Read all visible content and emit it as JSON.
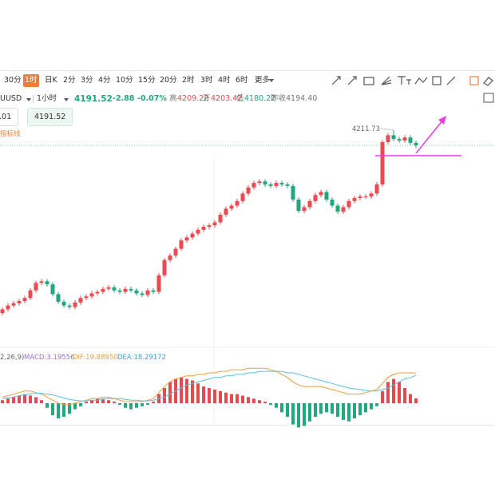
{
  "toolbar": {
    "periods": [
      "30分",
      "1时",
      "日K",
      "2分",
      "3分",
      "4分",
      "10分",
      "15分",
      "20分",
      "2时",
      "3时",
      "4时",
      "6时",
      "更多"
    ],
    "active": 1
  },
  "quote": {
    "symbol": "UUSD",
    "interval": "1小时",
    "price": "4191.52",
    "change": "-2.88",
    "change_pct": "-0.07%",
    "high_label": "高",
    "high": "4209.22",
    "open_label": "开",
    "open": "4203.42",
    "low_label": "低",
    "low": "4180.22",
    "prev_label": "昨收",
    "prev": "4194.40",
    "size_box": ".01",
    "price_box": "4191.52",
    "line_tool": "指标线"
  },
  "chart_data": [
    {
      "type": "candlestick",
      "up_color": "#eb4b50",
      "down_color": "#22a77a",
      "high_annotation": "4211.73",
      "last_price": 4191.52,
      "open": [
        3970,
        3975,
        3980,
        3983,
        3986,
        3990,
        4000,
        4010,
        4012,
        4008,
        3995,
        3985,
        3980,
        3978,
        3984,
        3990,
        3992,
        3996,
        3998,
        4002,
        4004,
        4000,
        3998,
        4002,
        4000,
        3996,
        3994,
        4000,
        3998,
        4020,
        4040,
        4046,
        4055,
        4066,
        4070,
        4075,
        4080,
        4084,
        4086,
        4090,
        4100,
        4108,
        4112,
        4118,
        4128,
        4136,
        4142,
        4144,
        4140,
        4138,
        4142,
        4140,
        4138,
        4120,
        4105,
        4110,
        4118,
        4126,
        4130,
        4120,
        4112,
        4104,
        4110,
        4118,
        4122,
        4124,
        4124,
        4128,
        4140,
        4196,
        4205,
        4200,
        4198,
        4202,
        4195
      ],
      "high": [
        3978,
        3983,
        3986,
        3989,
        3993,
        4003,
        4013,
        4015,
        4015,
        4011,
        3998,
        3988,
        3983,
        3987,
        3993,
        3995,
        3999,
        4001,
        4005,
        4007,
        4007,
        4003,
        4005,
        4005,
        4003,
        3999,
        4003,
        4003,
        4023,
        4043,
        4049,
        4058,
        4069,
        4073,
        4078,
        4083,
        4087,
        4089,
        4093,
        4103,
        4111,
        4115,
        4121,
        4131,
        4139,
        4145,
        4147,
        4147,
        4143,
        4145,
        4145,
        4143,
        4141,
        4123,
        4113,
        4121,
        4129,
        4133,
        4133,
        4123,
        4115,
        4113,
        4121,
        4125,
        4127,
        4127,
        4131,
        4143,
        4199,
        4208,
        4211.73,
        4203,
        4205,
        4205,
        4198
      ],
      "low": [
        3967,
        3972,
        3977,
        3980,
        3983,
        3987,
        3997,
        4007,
        4005,
        3992,
        3982,
        3977,
        3975,
        3975,
        3981,
        3987,
        3989,
        3993,
        3995,
        3999,
        3997,
        3995,
        3995,
        3997,
        3993,
        3991,
        3991,
        3995,
        3995,
        4017,
        4037,
        4043,
        4052,
        4063,
        4067,
        4072,
        4077,
        4081,
        4083,
        4087,
        4097,
        4105,
        4109,
        4115,
        4125,
        4133,
        4139,
        4137,
        4135,
        4135,
        4137,
        4135,
        4117,
        4102,
        4102,
        4107,
        4115,
        4123,
        4117,
        4109,
        4101,
        4101,
        4107,
        4115,
        4119,
        4121,
        4121,
        4125,
        4137,
        4193,
        4197,
        4195,
        4195,
        4192,
        4188
      ],
      "close": [
        3975,
        3980,
        3983,
        3986,
        3990,
        4000,
        4010,
        4012,
        4008,
        3995,
        3985,
        3980,
        3978,
        3984,
        3990,
        3992,
        3996,
        3998,
        4002,
        4004,
        4000,
        3998,
        4002,
        4000,
        3996,
        3994,
        4000,
        3998,
        4020,
        4040,
        4046,
        4055,
        4066,
        4070,
        4075,
        4080,
        4084,
        4086,
        4090,
        4100,
        4108,
        4112,
        4118,
        4128,
        4136,
        4142,
        4144,
        4140,
        4138,
        4142,
        4140,
        4138,
        4120,
        4105,
        4110,
        4118,
        4126,
        4130,
        4120,
        4112,
        4104,
        4110,
        4118,
        4122,
        4124,
        4124,
        4128,
        4140,
        4196,
        4205,
        4200,
        4198,
        4202,
        4195,
        4191.52
      ]
    },
    {
      "type": "macd",
      "params": "2,26,9)",
      "legend": [
        "MACD:3.19556",
        "DIF:19.88950",
        "DEA:18.29172"
      ],
      "legend_colors": [
        "#9b6bd6",
        "#f39c3d",
        "#3aa6d8"
      ],
      "up_color": "#e64a4f",
      "down_color": "#1fa97c",
      "values": [
        2,
        3,
        4,
        5,
        6,
        5,
        4,
        2,
        -3,
        -8,
        -10,
        -9,
        -7,
        -4,
        -2,
        1,
        2,
        3,
        3,
        2,
        1,
        -1,
        -3,
        -4,
        -3,
        -2,
        -1,
        1,
        6,
        10,
        14,
        16,
        17,
        16,
        15,
        13,
        11,
        10,
        9,
        8,
        7,
        6,
        6,
        5,
        4,
        3,
        2,
        1,
        -1,
        -3,
        -6,
        -9,
        -14,
        -16,
        -15,
        -12,
        -9,
        -7,
        -6,
        -7,
        -9,
        -11,
        -12,
        -10,
        -8,
        -6,
        -4,
        -2,
        8,
        14,
        16,
        14,
        10,
        6,
        3.19556
      ],
      "dif": {
        "color": "#f39c3d",
        "values": [
          4,
          5,
          6,
          7,
          8,
          8,
          7,
          6,
          4,
          2,
          0,
          -1,
          -1,
          0,
          1,
          2,
          3,
          3,
          4,
          4,
          3,
          2,
          1,
          1,
          1,
          1,
          2,
          3,
          7,
          11,
          14,
          16,
          17,
          18,
          18,
          19,
          19,
          20,
          20,
          21,
          21,
          22,
          22,
          22,
          23,
          23,
          23,
          23,
          22,
          21,
          19,
          17,
          14,
          12,
          11,
          11,
          11,
          11,
          10,
          9,
          8,
          7,
          6,
          6,
          6,
          7,
          8,
          9,
          13,
          17,
          19,
          20,
          20,
          20,
          19.8895
        ]
      },
      "dea": {
        "color": "#5bbfe6",
        "values": [
          3,
          3.5,
          4,
          5,
          5.5,
          6,
          6.5,
          6.5,
          6,
          5.5,
          4.5,
          3.5,
          2.5,
          2,
          1.5,
          1.5,
          2,
          2,
          2.5,
          3,
          3,
          3,
          2.5,
          2,
          2,
          1.5,
          1.5,
          2,
          3,
          4,
          6,
          8,
          10,
          12,
          13,
          14,
          15,
          16,
          17,
          17,
          18,
          18,
          19,
          19,
          20,
          20,
          21,
          21,
          21,
          21,
          21,
          20,
          20,
          19,
          18,
          17,
          16,
          15,
          14,
          13,
          12,
          11,
          10,
          9.5,
          9,
          8.5,
          8,
          8,
          9,
          10,
          12,
          14,
          16,
          17,
          18.29172
        ]
      }
    }
  ]
}
